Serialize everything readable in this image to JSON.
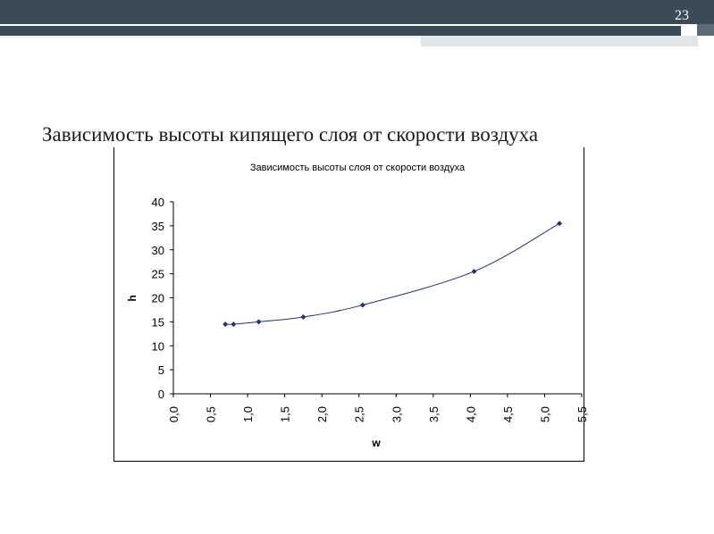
{
  "slide": {
    "number": "23",
    "title": "Зависимость высоты кипящего слоя от скорости воздуха"
  },
  "colors": {
    "header_bar": "#3a4a56",
    "series": "#1f2f8a"
  },
  "chart_data": {
    "type": "scatter",
    "title": "Зависимость высоты слоя от скорости воздуха",
    "xlabel": "w",
    "ylabel": "h",
    "xlim": [
      0,
      5.5
    ],
    "ylim": [
      0,
      40
    ],
    "x_ticks": [
      "0,0",
      "0,5",
      "1,0",
      "1,5",
      "2,0",
      "2,5",
      "3,0",
      "3,5",
      "4,0",
      "4,5",
      "5,0",
      "5,5"
    ],
    "y_ticks": [
      "0",
      "5",
      "10",
      "15",
      "20",
      "25",
      "30",
      "35",
      "40"
    ],
    "grid": false,
    "series": [
      {
        "x": [
          0.7,
          0.81,
          1.15,
          1.75,
          2.55,
          4.05,
          5.2
        ],
        "y": [
          14.5,
          14.5,
          15.0,
          16.0,
          18.5,
          25.5,
          35.5
        ],
        "marker": "diamond",
        "smoothed_line": true
      }
    ]
  }
}
